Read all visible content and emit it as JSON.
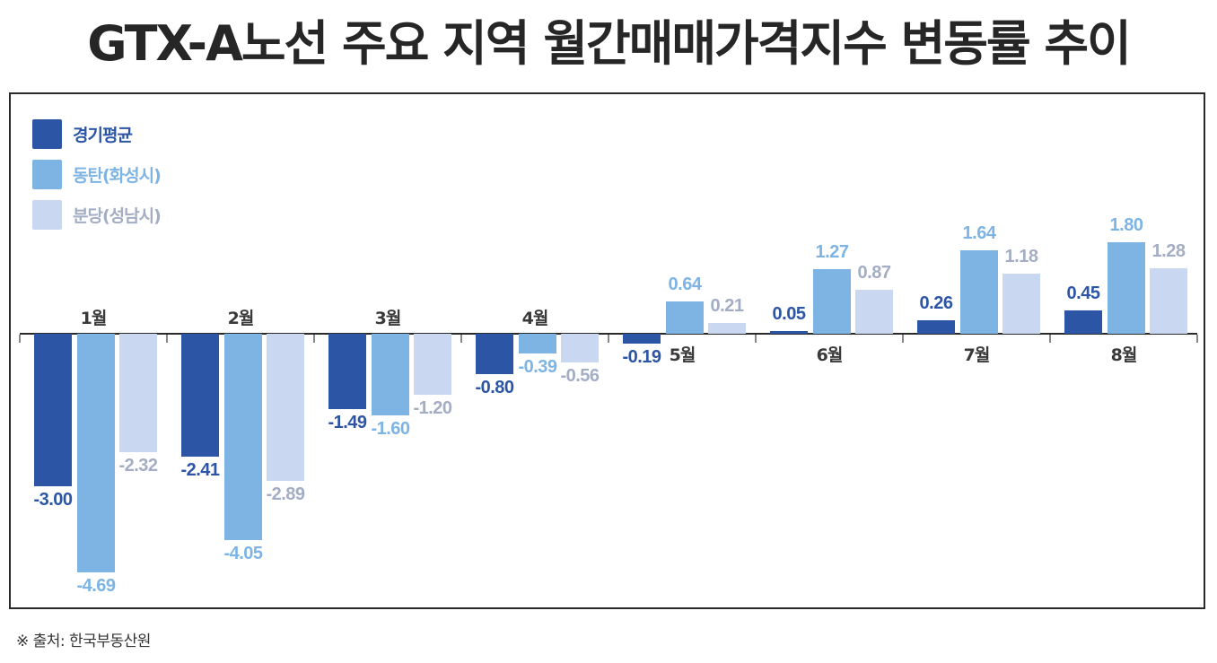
{
  "title": "GTX-A노선 주요 지역 월간매매가격지수 변동률 추이",
  "source": "※ 출처: 한국부동산원",
  "legend": [
    {
      "label": "경기평균",
      "color": "#2d55a6",
      "text_color": "#2d55a6"
    },
    {
      "label": "동탄(화성시)",
      "color": "#7db4e4",
      "text_color": "#7db4e4"
    },
    {
      "label": "분당(성남시)",
      "color": "#c9d8f0",
      "text_color": "#a3adc4"
    }
  ],
  "chart_data": {
    "type": "bar",
    "title": "GTX-A노선 주요 지역 월간매매가격지수 변동률 추이",
    "xlabel": "",
    "ylabel": "",
    "categories": [
      "1월",
      "2월",
      "3월",
      "4월",
      "5월",
      "6월",
      "7월",
      "8월"
    ],
    "series": [
      {
        "name": "경기평균",
        "values": [
          -3.0,
          -2.41,
          -1.49,
          -0.8,
          -0.19,
          0.05,
          0.26,
          0.45
        ]
      },
      {
        "name": "동탄(화성시)",
        "values": [
          -4.69,
          -4.05,
          -1.6,
          -0.39,
          0.64,
          1.27,
          1.64,
          1.8
        ]
      },
      {
        "name": "분당(성남시)",
        "values": [
          -2.32,
          -2.89,
          -1.2,
          -0.56,
          0.21,
          0.87,
          1.18,
          1.28
        ]
      }
    ],
    "value_labels": [
      [
        "-3.00",
        "-2.41",
        "-1.49",
        "-0.80",
        "-0.19",
        "0.05",
        "0.26",
        "0.45"
      ],
      [
        "-4.69",
        "-4.05",
        "-1.60",
        "-0.39",
        "0.64",
        "1.27",
        "1.64",
        "1.80"
      ],
      [
        "-2.32",
        "-2.89",
        "-1.20",
        "-0.56",
        "0.21",
        "0.87",
        "1.18",
        "1.28"
      ]
    ],
    "ylim": [
      -5,
      2
    ],
    "grid": false,
    "legend_position": "top-left",
    "colors": [
      "#2d55a6",
      "#7db4e4",
      "#c9d8f0"
    ],
    "label_colors": [
      "#2d55a6",
      "#7db4e4",
      "#a3adc4"
    ]
  }
}
